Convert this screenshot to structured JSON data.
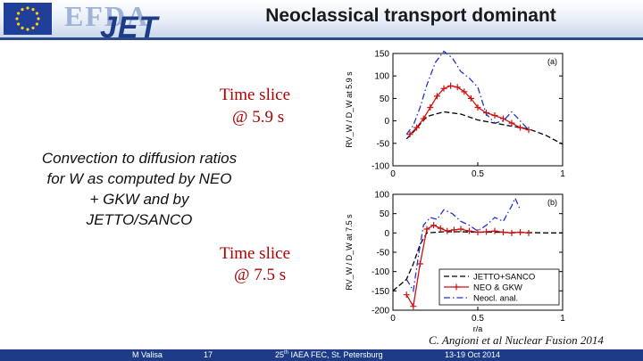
{
  "header": {
    "title": "Neoclassical transport dominant",
    "logo_efda": "EFDA",
    "logo_jet": "JET"
  },
  "time_slice_a": {
    "line1": "Time slice",
    "line2": "@ 5.9 s"
  },
  "time_slice_b": {
    "line1": "Time slice",
    "line2": "@ 7.5 s"
  },
  "description": {
    "line1": "Convection to diffusion ratios",
    "line2": "for  W as computed by NEO",
    "line3": "+ GKW and by",
    "line4": "JETTO/SANCO"
  },
  "citation": "C. Angioni et al Nuclear Fusion 2014",
  "footer": {
    "author": "M Valisa",
    "page": "17",
    "conference_num": "25",
    "conference_sup": "th",
    "conference_rest": " IAEA FEC, St. Petersburg",
    "date": "13-19 Oct 2014"
  },
  "colors": {
    "header_blue": "#1d3b86",
    "time_red": "#b00000",
    "neo_gkw": "#cc1111",
    "neocl": "#2233cc",
    "jetto": "#000000"
  },
  "chart_data": [
    {
      "type": "line",
      "panel_label": "(a)",
      "ylabel": "RV_W / D_W at 5.9 s",
      "xlim": [
        0,
        1
      ],
      "ylim": [
        -100,
        150
      ],
      "xticks": [
        "0",
        "0.5",
        "1"
      ],
      "yticks": [
        "-100",
        "-50",
        "0",
        "50",
        "100",
        "150"
      ],
      "series": [
        {
          "key": "jetto",
          "style": "dashed",
          "color": "#000000",
          "x": [
            0.08,
            0.12,
            0.2,
            0.3,
            0.4,
            0.5,
            0.6,
            0.7,
            0.8,
            0.9,
            1.0
          ],
          "y": [
            -40,
            -25,
            10,
            20,
            15,
            2,
            -5,
            -12,
            -18,
            -32,
            -52
          ]
        },
        {
          "key": "neo_gkw",
          "style": "solid-plus",
          "color": "#cc1111",
          "x": [
            0.1,
            0.14,
            0.18,
            0.22,
            0.26,
            0.3,
            0.34,
            0.38,
            0.42,
            0.46,
            0.5,
            0.55,
            0.6,
            0.65,
            0.7,
            0.75,
            0.8
          ],
          "y": [
            -30,
            -15,
            5,
            30,
            55,
            72,
            78,
            75,
            65,
            50,
            30,
            18,
            12,
            5,
            -5,
            -15,
            -20
          ]
        },
        {
          "key": "neocl",
          "style": "dashdot",
          "color": "#2233cc",
          "x": [
            0.08,
            0.12,
            0.16,
            0.2,
            0.25,
            0.3,
            0.35,
            0.4,
            0.45,
            0.5,
            0.55,
            0.6,
            0.65,
            0.7,
            0.75,
            0.8
          ],
          "y": [
            -30,
            -10,
            30,
            80,
            130,
            155,
            140,
            110,
            95,
            75,
            15,
            -5,
            0,
            20,
            0,
            -20
          ]
        }
      ]
    },
    {
      "type": "line",
      "panel_label": "(b)",
      "ylabel": "RV_W / D_W at 7.5 s",
      "xlabel": "r/a",
      "xlim": [
        0,
        1
      ],
      "ylim": [
        -200,
        100
      ],
      "xticks": [
        "0",
        "0.5",
        "1"
      ],
      "yticks": [
        "-200",
        "-150",
        "-100",
        "-50",
        "0",
        "50",
        "100"
      ],
      "legend": [
        "JETTO+SANCO",
        "NEO & GKW",
        "Neocl. anal."
      ],
      "legend_position": "lower-right",
      "series": [
        {
          "key": "jetto",
          "style": "dashed",
          "color": "#000000",
          "x": [
            0.0,
            0.08,
            0.12,
            0.16,
            0.2,
            0.3,
            0.4,
            0.5,
            0.6,
            0.7,
            0.8,
            0.9,
            1.0
          ],
          "y": [
            -150,
            -120,
            -80,
            -30,
            0,
            3,
            3,
            2,
            2,
            1,
            1,
            0,
            0
          ]
        },
        {
          "key": "neo_gkw",
          "style": "solid-plus",
          "color": "#cc1111",
          "x": [
            0.08,
            0.12,
            0.16,
            0.2,
            0.24,
            0.28,
            0.32,
            0.36,
            0.4,
            0.45,
            0.5,
            0.55,
            0.6,
            0.65,
            0.7,
            0.75,
            0.8
          ],
          "y": [
            -160,
            -190,
            -80,
            10,
            20,
            12,
            5,
            8,
            10,
            5,
            2,
            3,
            5,
            2,
            0,
            2,
            0
          ]
        },
        {
          "key": "neocl",
          "style": "dashdot",
          "color": "#2233cc",
          "x": [
            0.08,
            0.12,
            0.15,
            0.18,
            0.22,
            0.26,
            0.3,
            0.35,
            0.4,
            0.45,
            0.5,
            0.55,
            0.6,
            0.65,
            0.7,
            0.72,
            0.75
          ],
          "y": [
            -120,
            -150,
            -60,
            20,
            40,
            35,
            60,
            50,
            30,
            20,
            5,
            20,
            40,
            30,
            70,
            90,
            60
          ]
        }
      ]
    }
  ]
}
